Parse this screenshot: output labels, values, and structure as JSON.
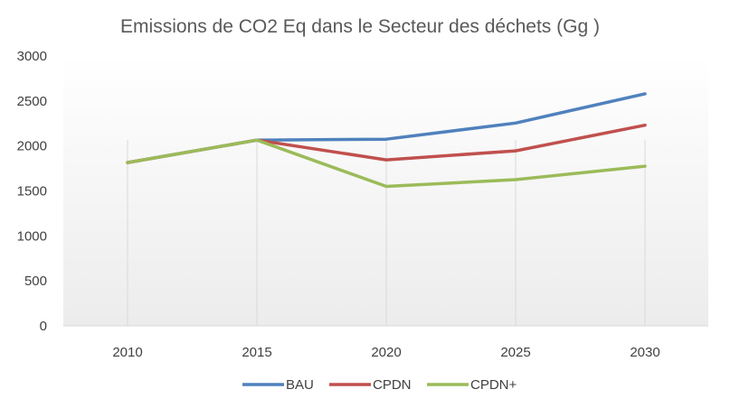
{
  "chart_data": {
    "type": "line",
    "title": "Emissions de CO2 Eq dans le Secteur des déchets (Gg )",
    "xlabel": "",
    "ylabel": "",
    "categories": [
      "2010",
      "2015",
      "2020",
      "2025",
      "2030"
    ],
    "y_ticks": [
      "0",
      "500",
      "1000",
      "1500",
      "2000",
      "2500",
      "3000"
    ],
    "ylim": [
      0,
      3000
    ],
    "grid": false,
    "legend_position": "bottom",
    "series": [
      {
        "name": "BAU",
        "color": "#4f81bd",
        "values": [
          1815,
          2065,
          2075,
          2255,
          2580
        ]
      },
      {
        "name": "CPDN",
        "color": "#c0504d",
        "values": [
          1815,
          2065,
          1845,
          1945,
          2230
        ]
      },
      {
        "name": "CPDN+",
        "color": "#9bbb59",
        "values": [
          1815,
          2065,
          1550,
          1625,
          1775
        ]
      }
    ]
  }
}
